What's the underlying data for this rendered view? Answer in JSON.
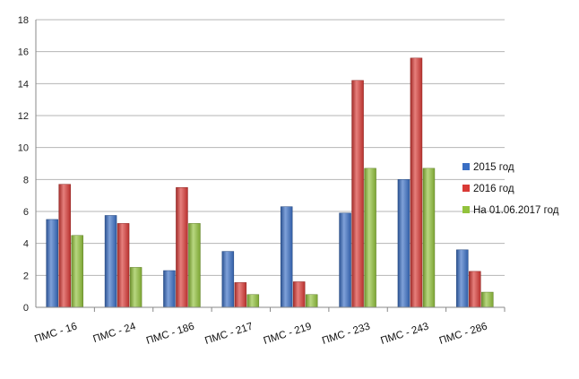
{
  "chart_data": {
    "type": "bar",
    "title": "",
    "xlabel": "",
    "ylabel": "",
    "ylim": [
      0,
      18
    ],
    "yticks": [
      0,
      2,
      4,
      6,
      8,
      10,
      12,
      14,
      16,
      18
    ],
    "grid": true,
    "legend_position": "right",
    "categories": [
      "ПМС - 16",
      "ПМС - 24",
      "ПМС - 186",
      "ПМС - 217",
      "ПМС - 219",
      "ПМС - 233",
      "ПМС - 243",
      "ПМС - 286"
    ],
    "category_labels_shown": [
      "ПМС - 16",
      "ПМС - 24",
      "ПМС - 186",
      "ПМС - 217",
      "ПМС - 219",
      "ПМС - 233",
      "ПМС - 243",
      "ПМС - 286"
    ],
    "series": [
      {
        "name": "2015 год",
        "color": "#3a6fc4",
        "values": [
          5.5,
          5.75,
          2.3,
          3.5,
          6.3,
          5.9,
          8.0,
          3.6
        ]
      },
      {
        "name": "2016 год",
        "color": "#d93a36",
        "values": [
          7.7,
          5.25,
          7.5,
          1.55,
          1.6,
          14.2,
          15.6,
          2.25
        ]
      },
      {
        "name": "На 01.06.2017 год",
        "color": "#92c23c",
        "values": [
          4.5,
          2.5,
          5.25,
          0.8,
          0.8,
          8.7,
          8.7,
          0.95
        ]
      }
    ]
  }
}
